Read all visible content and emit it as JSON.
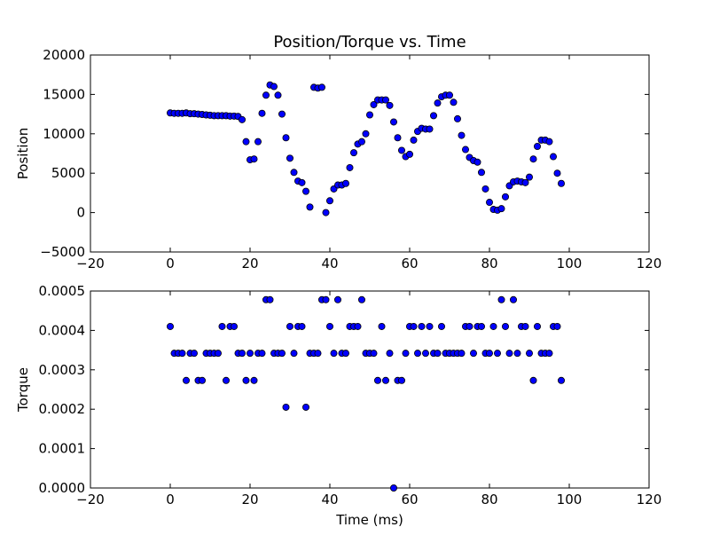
{
  "chart_data": [
    {
      "type": "scatter",
      "title": "Position/Torque vs. Time",
      "xlabel": "",
      "ylabel": "Position",
      "xlim": [
        -20,
        120
      ],
      "ylim": [
        -5000,
        20000
      ],
      "xticks": [
        "−20",
        "0",
        "20",
        "40",
        "60",
        "80",
        "100",
        "120"
      ],
      "yticks": [
        "−5000",
        "0",
        "5000",
        "10000",
        "15000",
        "20000"
      ],
      "marker_color": "#0000ff",
      "series": [
        {
          "x": [
            0,
            1,
            2,
            3,
            4,
            5,
            6,
            7,
            8,
            9,
            10,
            11,
            12,
            13,
            14,
            15,
            16,
            17,
            18,
            19,
            20,
            21,
            22,
            23,
            24,
            25,
            26,
            27,
            28,
            29,
            30,
            31,
            32,
            33,
            34,
            35,
            36,
            37,
            38,
            39,
            40,
            41,
            42,
            43,
            44,
            45,
            46,
            47,
            48,
            49,
            50,
            51,
            52,
            53,
            54,
            55,
            56,
            57,
            58,
            59,
            60,
            61,
            62,
            63,
            64,
            65,
            66,
            67,
            68,
            69,
            70,
            71,
            72,
            73,
            74,
            75,
            76,
            77,
            78,
            79,
            80,
            81,
            82,
            83,
            84,
            85,
            86,
            87,
            88,
            89,
            90,
            91,
            92,
            93,
            94,
            95,
            96,
            97,
            98
          ],
          "y": [
            12650,
            12600,
            12600,
            12600,
            12650,
            12550,
            12550,
            12500,
            12450,
            12400,
            12350,
            12300,
            12300,
            12300,
            12300,
            12250,
            12250,
            12200,
            11800,
            9000,
            6700,
            6800,
            9000,
            12600,
            14900,
            16200,
            16000,
            14900,
            12500,
            9500,
            6900,
            5100,
            4000,
            3800,
            2700,
            700,
            15900,
            15800,
            15900,
            0,
            1500,
            3000,
            3500,
            3500,
            3700,
            5700,
            7600,
            8700,
            9000,
            10000,
            12400,
            13700,
            14300,
            14300,
            14300,
            13600,
            11500,
            9500,
            7900,
            7100,
            7400,
            9200,
            10300,
            10700,
            10600,
            10600,
            12300,
            13900,
            14700,
            14900,
            14900,
            14000,
            11900,
            9800,
            8000,
            7000,
            6600,
            6400,
            5100,
            3000,
            1300,
            400,
            300,
            500,
            2000,
            3400,
            3900,
            4000,
            3900,
            3800,
            4500,
            6800,
            8400,
            9200,
            9200,
            9000,
            7100,
            5000,
            3700
          ]
        }
      ]
    },
    {
      "type": "scatter",
      "title": "",
      "xlabel": "Time (ms)",
      "ylabel": "Torque",
      "xlim": [
        -20,
        120
      ],
      "ylim": [
        0,
        0.0005
      ],
      "xticks": [
        "−20",
        "0",
        "20",
        "40",
        "60",
        "80",
        "100",
        "120"
      ],
      "yticks": [
        "0.0000",
        "0.0001",
        "0.0002",
        "0.0003",
        "0.0004",
        "0.0005"
      ],
      "marker_color": "#0000ff",
      "series": [
        {
          "x": [
            0,
            1,
            2,
            3,
            4,
            5,
            6,
            7,
            8,
            9,
            10,
            11,
            12,
            13,
            14,
            15,
            16,
            17,
            18,
            19,
            20,
            21,
            22,
            23,
            24,
            25,
            26,
            27,
            28,
            29,
            30,
            31,
            32,
            33,
            34,
            35,
            36,
            37,
            38,
            39,
            40,
            41,
            42,
            43,
            44,
            45,
            46,
            47,
            48,
            49,
            50,
            51,
            52,
            53,
            54,
            55,
            56,
            57,
            58,
            59,
            60,
            61,
            62,
            63,
            64,
            65,
            66,
            67,
            68,
            69,
            70,
            71,
            72,
            73,
            74,
            75,
            76,
            77,
            78,
            79,
            80,
            81,
            82,
            83,
            84,
            85,
            86,
            87,
            88,
            89,
            90,
            91,
            92,
            93,
            94,
            95,
            96,
            97,
            98
          ],
          "y": [
            0.00041,
            0.000342,
            0.000342,
            0.000342,
            0.000273,
            0.000342,
            0.000342,
            0.000273,
            0.000273,
            0.000342,
            0.000342,
            0.000342,
            0.000342,
            0.00041,
            0.000273,
            0.00041,
            0.00041,
            0.000342,
            0.000342,
            0.000273,
            0.000342,
            0.000273,
            0.000342,
            0.000342,
            0.000478,
            0.000478,
            0.000342,
            0.000342,
            0.000342,
            0.000205,
            0.00041,
            0.000342,
            0.00041,
            0.00041,
            0.000205,
            0.000342,
            0.000342,
            0.000342,
            0.000478,
            0.000478,
            0.00041,
            0.000342,
            0.000478,
            0.000342,
            0.000342,
            0.00041,
            0.00041,
            0.00041,
            0.000478,
            0.000342,
            0.000342,
            0.000342,
            0.000273,
            0.00041,
            0.000273,
            0.000342,
            0.0,
            0.000273,
            0.000273,
            0.000342,
            0.00041,
            0.00041,
            0.000342,
            0.00041,
            0.000342,
            0.00041,
            0.000342,
            0.000342,
            0.00041,
            0.000342,
            0.000342,
            0.000342,
            0.000342,
            0.000342,
            0.00041,
            0.00041,
            0.000342,
            0.00041,
            0.00041,
            0.000342,
            0.000342,
            0.00041,
            0.000342,
            0.000478,
            0.00041,
            0.000342,
            0.000478,
            0.000342,
            0.00041,
            0.00041,
            0.000342,
            0.000273,
            0.00041,
            0.000342,
            0.000342,
            0.000342,
            0.00041,
            0.00041,
            0.000273
          ]
        }
      ]
    }
  ]
}
